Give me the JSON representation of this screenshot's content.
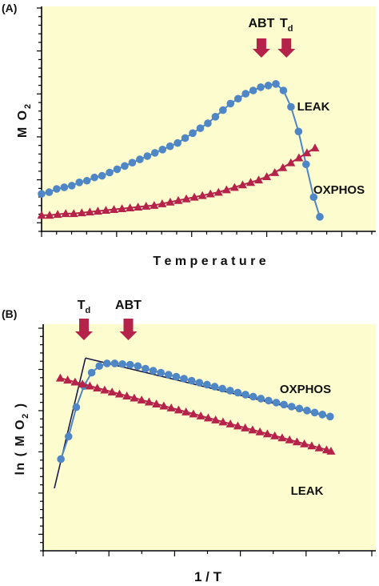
{
  "colors": {
    "background": "#fdfccf",
    "oxphos": "#4f86c6",
    "leak": "#b5224a",
    "arrow": "#b5224a",
    "axis": "#000000",
    "fit_line": "#1a1a4a"
  },
  "chart_data": [
    {
      "panel": "(A)",
      "type": "scatter",
      "xlabel": "T e m p e r a t u r e",
      "ylabel": "M O",
      "ylabel_sub": "2",
      "xlim": [
        0,
        100
      ],
      "ylim": [
        0,
        100
      ],
      "grid": false,
      "annotations": [
        {
          "text": "ABT",
          "sub": "",
          "x": 79
        },
        {
          "text": "T",
          "sub": "d",
          "x": 88
        }
      ],
      "series": [
        {
          "name": "OXPHOS",
          "marker": "circle",
          "x": [
            0,
            2.72,
            5.43,
            8.15,
            10.86,
            13.58,
            16.3,
            19.01,
            21.73,
            24.44,
            27.16,
            29.88,
            32.59,
            35.31,
            38.02,
            40.74,
            43.46,
            46.17,
            48.89,
            51.6,
            54.32,
            57.04,
            59.75,
            62.47,
            65.18,
            67.9,
            70.62,
            73.33,
            76.05,
            78.76,
            81.48,
            84.2,
            86.91,
            89.63,
            92.34,
            95.06,
            97.78,
            100
          ],
          "y": [
            17,
            18,
            20,
            21,
            22,
            24,
            25,
            27,
            28,
            30,
            32,
            34,
            36,
            38,
            40,
            42,
            44,
            46,
            48,
            51,
            54,
            57,
            60,
            64,
            68,
            72,
            75,
            78,
            80,
            82,
            83,
            84,
            80,
            70,
            55,
            35,
            15,
            3
          ]
        },
        {
          "name": "LEAK",
          "marker": "triangle",
          "x": [
            0,
            2.89,
            5.78,
            8.67,
            11.56,
            14.45,
            17.34,
            20.23,
            23.12,
            26.01,
            28.9,
            31.79,
            34.68,
            37.57,
            40.46,
            43.35,
            46.24,
            49.13,
            52.02,
            54.91,
            57.8,
            60.69,
            63.58,
            66.47,
            69.36,
            72.25,
            75.14,
            78.03,
            80.92,
            83.81,
            86.7,
            89.59,
            92.48,
            95.37,
            98.26
          ],
          "y": [
            4,
            4,
            4.5,
            5,
            5,
            5.5,
            6,
            6.5,
            7,
            7.5,
            8,
            8.5,
            9,
            9.5,
            10,
            11,
            12,
            13,
            14,
            15,
            16,
            17,
            18,
            19.5,
            21,
            22.5,
            24,
            25.5,
            27.5,
            30,
            33,
            36,
            39,
            42,
            45
          ]
        }
      ]
    },
    {
      "panel": "(B)",
      "type": "scatter",
      "xlabel": "1 / T",
      "ylabel": "ln ( M O",
      "ylabel_sub": "2",
      "ylabel_end": " )",
      "xlim": [
        0,
        100
      ],
      "ylim": [
        0,
        100
      ],
      "grid": false,
      "annotations": [
        {
          "text": "T",
          "sub": "d",
          "x": 10
        },
        {
          "text": "ABT",
          "sub": "",
          "x": 25
        }
      ],
      "series": [
        {
          "name": "OXPHOS",
          "marker": "circle",
          "x": [
            2.2,
            4.8,
            7.4,
            10.0,
            12.6,
            15.2,
            17.8,
            20.4,
            23.0,
            25.6,
            28.2,
            30.8,
            33.4,
            36.0,
            38.6,
            41.2,
            43.8,
            46.4,
            49.0,
            51.6,
            54.2,
            56.8,
            59.4,
            62.0,
            64.6,
            67.2,
            69.8,
            72.4,
            75.0,
            77.6,
            80.2,
            82.8,
            85.4,
            88.0,
            90.6,
            93.2
          ],
          "y": [
            16,
            33,
            55,
            71,
            81,
            86,
            88,
            88,
            87.5,
            87,
            86,
            84,
            82.5,
            81,
            79.5,
            78,
            76.5,
            75,
            73.5,
            72,
            70.5,
            69,
            67.5,
            66,
            64.5,
            63,
            61.5,
            60,
            58.5,
            57,
            55.5,
            54,
            52.5,
            51,
            49.5,
            48
          ]
        },
        {
          "name": "LEAK",
          "marker": "triangle",
          "x": [
            2.0,
            4.5,
            7.0,
            9.5,
            12.0,
            14.5,
            17.0,
            19.5,
            22.0,
            24.5,
            27.0,
            29.5,
            32.0,
            34.5,
            37.0,
            39.5,
            42.0,
            44.5,
            47.0,
            49.5,
            52.0,
            54.5,
            57.0,
            59.5,
            62.0,
            64.5,
            67.0,
            69.5,
            72.0,
            74.5,
            77.0,
            79.5,
            82.0,
            84.5,
            87.0,
            89.5,
            92.0,
            93.5
          ],
          "y": [
            77,
            75.5,
            74,
            72.5,
            71,
            69.5,
            68,
            66.5,
            65,
            63.5,
            62,
            60.5,
            59,
            57.5,
            56,
            54.5,
            53,
            51.5,
            50,
            48.5,
            47,
            45.5,
            44,
            42.5,
            41,
            39.5,
            38,
            36.5,
            35,
            33.5,
            32,
            30.5,
            29,
            27.5,
            26,
            24.5,
            23,
            22
          ]
        }
      ]
    }
  ]
}
